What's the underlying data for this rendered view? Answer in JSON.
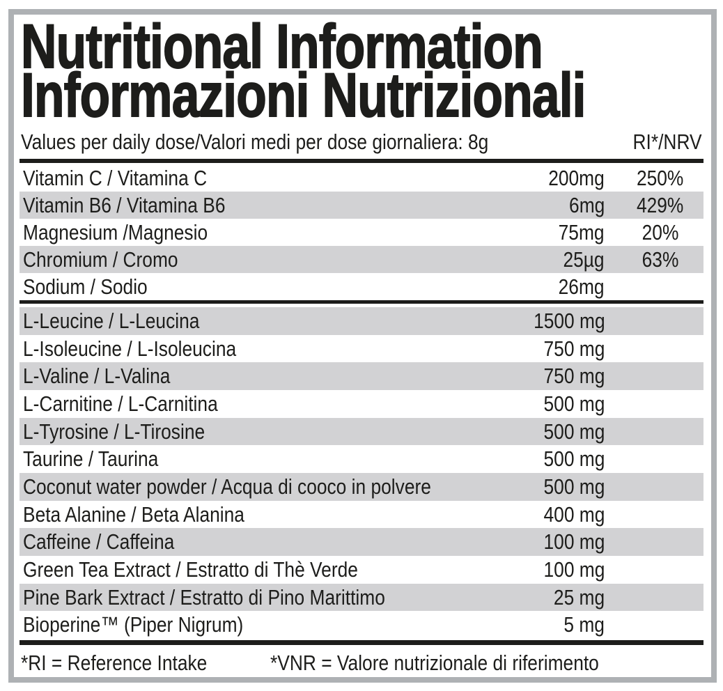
{
  "title": {
    "line1": "Nutritional Information",
    "line2": "Informazioni Nutrizionali"
  },
  "header": {
    "dose_line": "Values per daily dose/Valori medi per dose giornaliera: 8g",
    "ri_column": "RI*/NRV"
  },
  "table": {
    "micronutrients": [
      {
        "name": "Vitamin C / Vitamina C",
        "amount": "200mg",
        "ri": "250%"
      },
      {
        "name": "Vitamin B6 / Vitamina B6",
        "amount": "6mg",
        "ri": "429%"
      },
      {
        "name": "Magnesium /Magnesio",
        "amount": "75mg",
        "ri": "20%"
      },
      {
        "name": "Chromium / Cromo",
        "amount": "25µg",
        "ri": "63%"
      },
      {
        "name": "Sodium / Sodio",
        "amount": "26mg",
        "ri": ""
      }
    ],
    "ingredients": [
      {
        "name": "L-Leucine / L-Leucina",
        "amount": "1500 mg",
        "ri": ""
      },
      {
        "name": "L-Isoleucine / L-Isoleucina",
        "amount": "750 mg",
        "ri": ""
      },
      {
        "name": "L-Valine / L-Valina",
        "amount": "750 mg",
        "ri": ""
      },
      {
        "name": "L-Carnitine / L-Carnitina",
        "amount": "500 mg",
        "ri": ""
      },
      {
        "name": "L-Tyrosine / L-Tirosine",
        "amount": "500 mg",
        "ri": ""
      },
      {
        "name": "Taurine / Taurina",
        "amount": "500 mg",
        "ri": ""
      },
      {
        "name": "Coconut water powder / Acqua di cooco in polvere",
        "amount": "500 mg",
        "ri": ""
      },
      {
        "name": "Beta Alanine / Beta Alanina",
        "amount": "400 mg",
        "ri": ""
      },
      {
        "name": "Caffeine / Caffeina",
        "amount": "100 mg",
        "ri": ""
      },
      {
        "name": "Green Tea Extract / Estratto di Thè Verde",
        "amount": "100 mg",
        "ri": ""
      },
      {
        "name": "Pine Bark Extract / Estratto di Pino Marittimo",
        "amount": "25 mg",
        "ri": ""
      },
      {
        "name": "Bioperine™ (Piper Nigrum)",
        "amount": "5 mg",
        "ri": ""
      }
    ]
  },
  "footer": {
    "ri_note": "*RI = Reference Intake",
    "vnr_note": "*VNR = Valore nutrizionale di riferimento"
  },
  "colors": {
    "row_shade": "#d2d2d4",
    "frame_border": "#aeb1b4",
    "ink": "#1d1d1b"
  }
}
